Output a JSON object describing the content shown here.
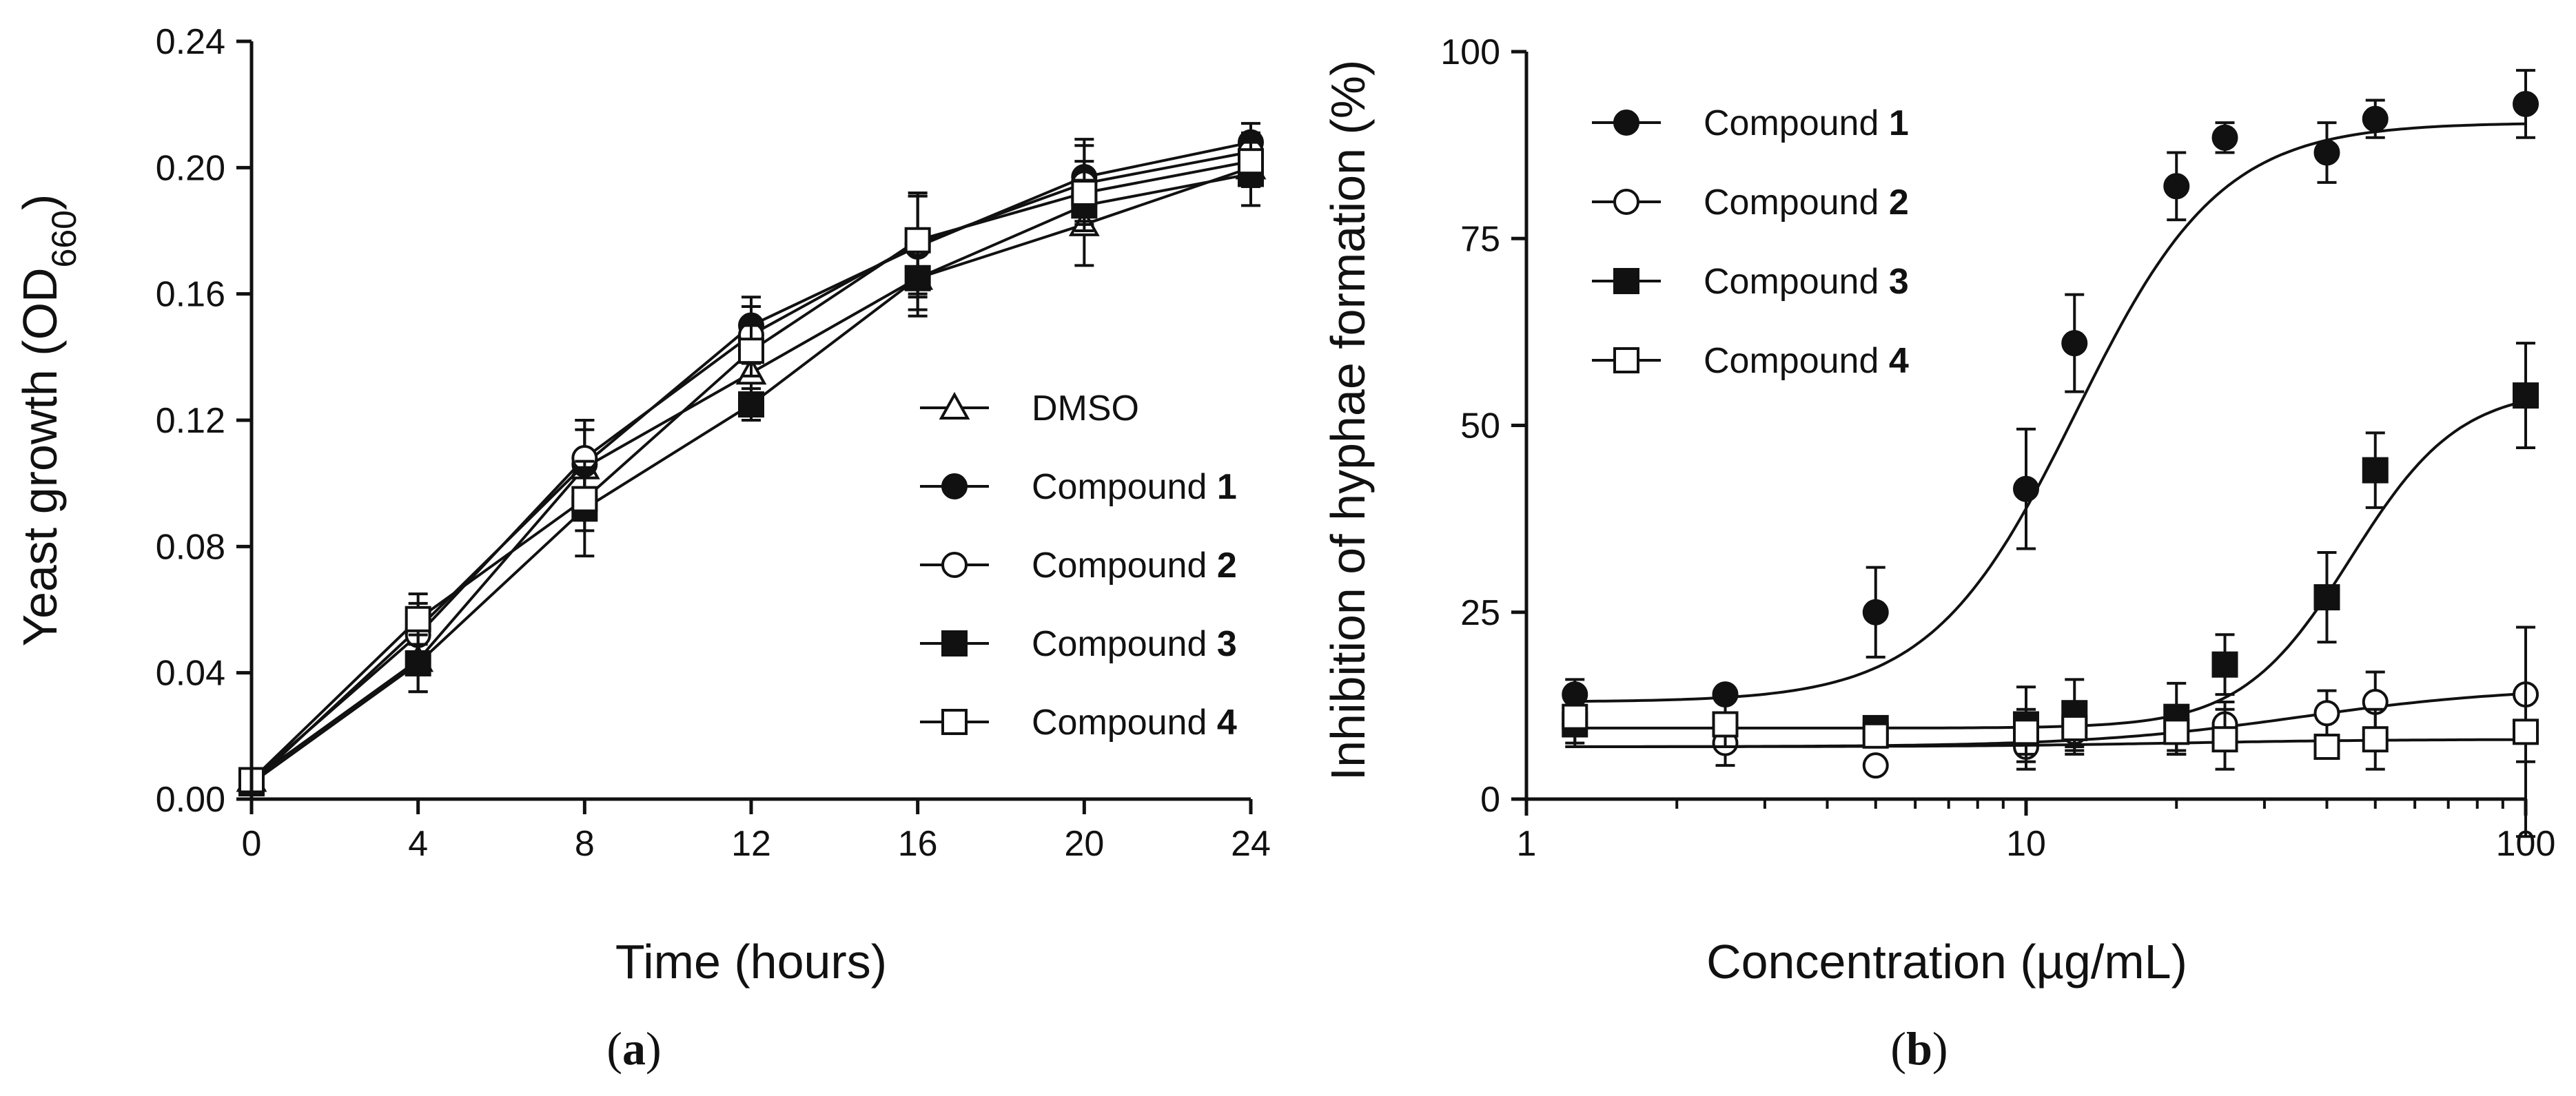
{
  "chart_data": [
    {
      "panel": "(a)",
      "panel_letter": "a",
      "type": "line",
      "xlabel": "Time (hours)",
      "ylabel": {
        "prefix": "Yeast growth (OD",
        "subscript": "660",
        "suffix": ")"
      },
      "xlim": [
        0,
        24
      ],
      "ylim": [
        0,
        0.24
      ],
      "xticks": [
        "0",
        "4",
        "8",
        "12",
        "16",
        "20",
        "24"
      ],
      "yticks": [
        "0.00",
        "0.04",
        "0.08",
        "0.12",
        "0.16",
        "0.20",
        "0.24"
      ],
      "legend_position": "center-right",
      "x": [
        0,
        4,
        8,
        12,
        16,
        20,
        24
      ],
      "series": [
        {
          "name": "DMSO",
          "label": "DMSO",
          "number": "",
          "marker": "triangle-open",
          "values": [
            0.006,
            0.044,
            0.105,
            0.135,
            0.165,
            0.182,
            0.2
          ],
          "errors": [
            0.002,
            0.01,
            0.012,
            0.01,
            0.012,
            0.013,
            0.006
          ]
        },
        {
          "name": "Compound 1",
          "label": "Compound ",
          "number": "1",
          "marker": "circle-filled",
          "values": [
            0.005,
            0.054,
            0.106,
            0.15,
            0.175,
            0.197,
            0.208
          ],
          "errors": [
            0.002,
            0.008,
            0.014,
            0.009,
            0.016,
            0.012,
            0.006
          ]
        },
        {
          "name": "Compound 2",
          "label": "Compound ",
          "number": "2",
          "marker": "circle-open",
          "values": [
            0.006,
            0.052,
            0.108,
            0.147,
            0.176,
            0.195,
            0.205
          ],
          "errors": [
            0.002,
            0.008,
            0.012,
            0.009,
            0.016,
            0.012,
            0.006
          ]
        },
        {
          "name": "Compound 3",
          "label": "Compound ",
          "number": "3",
          "marker": "square-filled",
          "values": [
            0.005,
            0.043,
            0.092,
            0.125,
            0.165,
            0.188,
            0.198
          ],
          "errors": [
            0.002,
            0.009,
            0.015,
            0.005,
            0.01,
            0.008,
            0.01
          ]
        },
        {
          "name": "Compound 4",
          "label": "Compound ",
          "number": "4",
          "marker": "square-open",
          "values": [
            0.006,
            0.057,
            0.095,
            0.142,
            0.177,
            0.192,
            0.202
          ],
          "errors": [
            0.002,
            0.008,
            0.01,
            0.008,
            0.014,
            0.01,
            0.008
          ]
        }
      ]
    },
    {
      "panel": "(b)",
      "panel_letter": "b",
      "type": "scatter",
      "xscale": "log",
      "xlabel": "Concentration (µg/mL)",
      "ylabel": "Inhibition of hyphae formation (%)",
      "xlim": [
        1,
        100
      ],
      "ylim": [
        0,
        100
      ],
      "xticks": [
        "1",
        "10",
        "100"
      ],
      "yticks": [
        "0",
        "25",
        "50",
        "75",
        "100"
      ],
      "legend_position": "top-left",
      "series": [
        {
          "name": "Compound 1",
          "label": "Compound ",
          "number": "1",
          "marker": "circle-filled",
          "x": [
            1.25,
            2.5,
            5,
            10,
            12.5,
            20,
            25,
            40,
            50,
            100
          ],
          "values": [
            14,
            14,
            25,
            41.5,
            61,
            82,
            88.5,
            86.5,
            91,
            93
          ],
          "errors": [
            2,
            1,
            6,
            8,
            6.5,
            4.5,
            2,
            4,
            2.5,
            4.5
          ],
          "fit": {
            "bottom": 13,
            "top": 90.5,
            "logEC50": 1.1,
            "hill": 3
          }
        },
        {
          "name": "Compound 2",
          "label": "Compound ",
          "number": "2",
          "marker": "circle-open",
          "x": [
            1.25,
            2.5,
            5,
            10,
            12.5,
            20,
            25,
            40,
            50,
            100
          ],
          "values": [
            10,
            7.5,
            4.5,
            7,
            9,
            9,
            10,
            11.5,
            13,
            14
          ],
          "errors": [
            2.5,
            3,
            0,
            3,
            3,
            3,
            3,
            3,
            4,
            9
          ],
          "fit": {
            "bottom": 7,
            "top": 15,
            "logEC50": 1.55,
            "hill": 2
          }
        },
        {
          "name": "Compound 3",
          "label": "Compound ",
          "number": "3",
          "marker": "square-filled",
          "x": [
            1.25,
            2.5,
            5,
            10,
            12.5,
            20,
            25,
            40,
            50,
            100
          ],
          "values": [
            10,
            10,
            9.5,
            10,
            11.5,
            11,
            18,
            27,
            44,
            54
          ],
          "errors": [
            3,
            3,
            1,
            5,
            4.5,
            4.5,
            4,
            6,
            5,
            7
          ],
          "fit": {
            "bottom": 9.5,
            "top": 55,
            "logEC50": 1.65,
            "hill": 4
          }
        },
        {
          "name": "Compound 4",
          "label": "Compound ",
          "number": "4",
          "marker": "square-open",
          "x": [
            1.25,
            2.5,
            5,
            10,
            12.5,
            20,
            25,
            40,
            50,
            100
          ],
          "values": [
            11,
            10,
            8.5,
            9,
            9.5,
            9,
            8,
            7,
            8,
            9
          ],
          "errors": [
            2.5,
            3,
            1,
            3,
            3,
            3,
            4,
            1,
            4,
            14
          ],
          "fit": {
            "bottom": 7,
            "top": 8,
            "logEC50": 1.3,
            "hill": 2
          }
        }
      ]
    }
  ]
}
